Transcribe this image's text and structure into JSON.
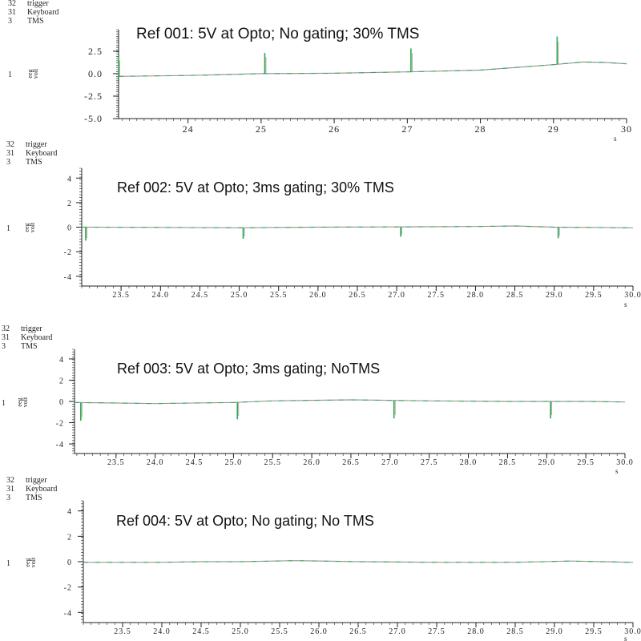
{
  "colors": {
    "trace": "#2fa84f",
    "baseline": "#9a9a9a",
    "axis": "#222222"
  },
  "chart_data": [
    {
      "type": "line",
      "title": "Ref 001: 5V at Opto; No gating; 30% TMS",
      "channels": [
        {
          "num": "32",
          "name": "trigger"
        },
        {
          "num": "31",
          "name": "Keyboard"
        },
        {
          "num": "3",
          "name": "TMS"
        }
      ],
      "trace_num": "1",
      "ylabel_top": "eeg",
      "ylabel_bottom": "volt",
      "xlabel": "s",
      "xlim": [
        23.05,
        30
      ],
      "ylim": [
        -5,
        4.9
      ],
      "xticks": [
        "24",
        "25",
        "26",
        "27",
        "28",
        "29",
        "30"
      ],
      "xtick_values": [
        24,
        25,
        26,
        27,
        28,
        29,
        30
      ],
      "yticks": [
        "2.5",
        "0.0",
        "-2.5",
        "-5.0"
      ],
      "ytick_values": [
        2.5,
        0,
        -2.5,
        -5
      ],
      "baseline": [
        [
          23.05,
          -0.3
        ],
        [
          24,
          -0.2
        ],
        [
          25,
          0
        ],
        [
          26,
          0.05
        ],
        [
          27,
          0.2
        ],
        [
          28,
          0.4
        ],
        [
          29,
          1.0
        ],
        [
          29.4,
          1.3
        ],
        [
          29.7,
          1.25
        ],
        [
          30,
          1.1
        ]
      ],
      "spikes": [
        {
          "t": 23.05,
          "amp": 2.2
        },
        {
          "t": 25.05,
          "amp": 2.3
        },
        {
          "t": 27.05,
          "amp": 2.6
        },
        {
          "t": 29.05,
          "amp": 3.1
        }
      ]
    },
    {
      "type": "line",
      "title": "Ref 002: 5V at Opto; 3ms gating; 30% TMS",
      "channels": [
        {
          "num": "32",
          "name": "trigger"
        },
        {
          "num": "31",
          "name": "Keyboard"
        },
        {
          "num": "3",
          "name": "TMS"
        }
      ],
      "trace_num": "1",
      "ylabel_top": "eeg",
      "ylabel_bottom": "volt",
      "xlabel": "s",
      "xlim": [
        23.0,
        30.0
      ],
      "ylim": [
        -4.8,
        4.8
      ],
      "xticks": [
        "23.5",
        "24.0",
        "24.5",
        "25.0",
        "25.5",
        "26.0",
        "26.5",
        "27.0",
        "27.5",
        "28.0",
        "28.5",
        "29.0",
        "29.5",
        "30.0"
      ],
      "xtick_values": [
        23.5,
        24,
        24.5,
        25,
        25.5,
        26,
        26.5,
        27,
        27.5,
        28,
        28.5,
        29,
        29.5,
        30
      ],
      "yticks": [
        "4",
        "2",
        "0",
        "-2",
        "-4"
      ],
      "ytick_values": [
        4,
        2,
        0,
        -2,
        -4
      ],
      "baseline": [
        [
          23.0,
          0
        ],
        [
          24,
          -0.02
        ],
        [
          25,
          -0.05
        ],
        [
          26,
          0
        ],
        [
          27,
          0.02
        ],
        [
          28,
          0.05
        ],
        [
          28.5,
          0.1
        ],
        [
          29,
          0
        ],
        [
          30,
          -0.05
        ]
      ],
      "spikes": [
        {
          "t": 23.05,
          "amp": -1.1
        },
        {
          "t": 25.05,
          "amp": -0.9
        },
        {
          "t": 27.05,
          "amp": -0.8
        },
        {
          "t": 29.05,
          "amp": -0.9
        }
      ]
    },
    {
      "type": "line",
      "title": "Ref 003: 5V at Opto; 3ms gating; NoTMS",
      "channels": [
        {
          "num": "32",
          "name": "trigger"
        },
        {
          "num": "31",
          "name": "Keyboard"
        },
        {
          "num": "3",
          "name": "TMS"
        }
      ],
      "trace_num": "1",
      "ylabel_top": "eeg",
      "ylabel_bottom": "volt",
      "xlabel": "s",
      "xlim": [
        22.97,
        30.0
      ],
      "ylim": [
        -4.9,
        4.9
      ],
      "xticks": [
        "23.5",
        "24.0",
        "24.5",
        "25.0",
        "25.5",
        "26.0",
        "26.5",
        "27.0",
        "27.5",
        "28.0",
        "28.5",
        "29.0",
        "29.5",
        "30.0"
      ],
      "xtick_values": [
        23.5,
        24,
        24.5,
        25,
        25.5,
        26,
        26.5,
        27,
        27.5,
        28,
        28.5,
        29,
        29.5,
        30
      ],
      "yticks": [
        "4",
        "2",
        "0",
        "-2",
        "-4"
      ],
      "ytick_values": [
        4,
        2,
        0,
        -2,
        -4
      ],
      "baseline": [
        [
          22.97,
          -0.1
        ],
        [
          24,
          -0.2
        ],
        [
          25,
          -0.1
        ],
        [
          25.5,
          0.05
        ],
        [
          26.5,
          0.15
        ],
        [
          27.5,
          0.05
        ],
        [
          28.5,
          0
        ],
        [
          29.5,
          0
        ],
        [
          30,
          -0.05
        ]
      ],
      "spikes": [
        {
          "t": 23.05,
          "amp": -1.7
        },
        {
          "t": 25.05,
          "amp": -1.6
        },
        {
          "t": 27.05,
          "amp": -1.7
        },
        {
          "t": 29.05,
          "amp": -1.6
        }
      ]
    },
    {
      "type": "line",
      "title": "Ref 004: 5V at Opto; No gating; No TMS",
      "channels": [
        {
          "num": "32",
          "name": "trigger"
        },
        {
          "num": "31",
          "name": "Keyboard"
        },
        {
          "num": "3",
          "name": "TMS"
        }
      ],
      "trace_num": "1",
      "ylabel_top": "eeg",
      "ylabel_bottom": "volt",
      "xlabel": "s",
      "xlim": [
        23.0,
        30.0
      ],
      "ylim": [
        -4.8,
        4.8
      ],
      "xticks": [
        "23.5",
        "24.0",
        "24.5",
        "25.0",
        "25.5",
        "26.0",
        "26.5",
        "27.0",
        "27.5",
        "28.0",
        "28.5",
        "29.0",
        "29.5",
        "30.0"
      ],
      "xtick_values": [
        23.5,
        24,
        24.5,
        25,
        25.5,
        26,
        26.5,
        27,
        27.5,
        28,
        28.5,
        29,
        29.5,
        30
      ],
      "yticks": [
        "4",
        "2",
        "0",
        "-2",
        "-4"
      ],
      "ytick_values": [
        4,
        2,
        0,
        -2,
        -4
      ],
      "baseline": [
        [
          23.0,
          -0.05
        ],
        [
          24,
          -0.05
        ],
        [
          24.5,
          0
        ],
        [
          25,
          0
        ],
        [
          25.7,
          0.08
        ],
        [
          26.5,
          0
        ],
        [
          27.5,
          -0.05
        ],
        [
          28.5,
          -0.05
        ],
        [
          29.2,
          0.05
        ],
        [
          30,
          -0.05
        ]
      ],
      "spikes": []
    }
  ]
}
